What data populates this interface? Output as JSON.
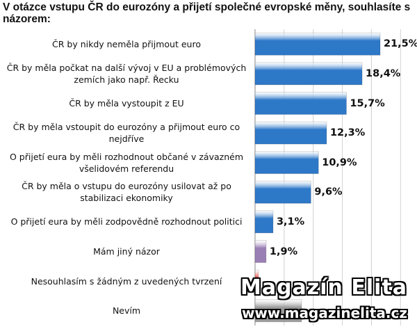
{
  "chart_data": {
    "type": "bar",
    "orientation": "horizontal",
    "title": "V otázce vstupu ČR do eurozóny a přijetí společné evropské měny, souhlasíte s názorem:",
    "categories": [
      "ČR by nikdy neměla přijmout euro",
      "ČR by měla počkat na další vývoj v EU a problémových zemích jako např. Řecku",
      "ČR by měla vystoupit z EU",
      "ČR by měla vstoupit do eurozóny a přijmout euro co nejdříve",
      "O přijetí eura by měli rozhodnout občané v závazném všelidovém referendu",
      "ČR by měla o vstupu do eurozóny usilovat až po stabilizaci ekonomiky",
      "O přijetí eura by měli zodpovědně rozhodnout politici",
      "Mám jiný názor",
      "Nesouhlasím s žádným z uvedených tvrzení",
      "Nevím"
    ],
    "values": [
      21.5,
      18.4,
      15.7,
      12.3,
      10.9,
      9.6,
      3.1,
      1.9,
      0.6,
      8.0
    ],
    "value_labels": [
      "21,5%",
      "18,4%",
      "15,7%",
      "12,3%",
      "10,9%",
      "9,6%",
      "3,1%",
      "1,9%",
      "",
      ""
    ],
    "bar_colors": [
      "#2e78c8",
      "#2e78c8",
      "#2e78c8",
      "#2e78c8",
      "#2e78c8",
      "#2e78c8",
      "#2e78c8",
      "#9a7fb4",
      "#e8514c",
      "#9a9a9a"
    ],
    "xlim": [
      0,
      25
    ],
    "grid": true,
    "legend": "none"
  },
  "watermark": {
    "line1": "Magazín Elita",
    "line2": "www.magazinelita.cz"
  }
}
